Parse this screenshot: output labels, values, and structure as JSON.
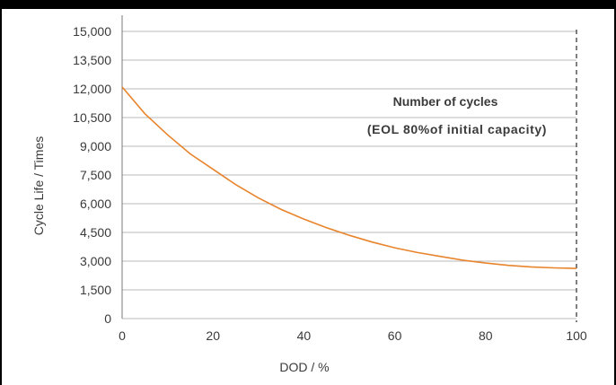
{
  "chart_data": {
    "type": "line",
    "title": "",
    "xlabel": "DOD / %",
    "ylabel": "Cycle Life / Times",
    "xlim": [
      0,
      100
    ],
    "ylim": [
      0,
      15000
    ],
    "x_ticks": [
      0,
      20,
      40,
      60,
      80,
      100
    ],
    "x_tick_labels": [
      "0",
      "20",
      "40",
      "60",
      "80",
      "100"
    ],
    "y_ticks": [
      0,
      1500,
      3000,
      4500,
      6000,
      7500,
      9000,
      10500,
      12000,
      13500,
      15000
    ],
    "y_tick_labels": [
      "0",
      "1,500",
      "3,000",
      "4,500",
      "6,000",
      "7,500",
      "9,000",
      "10,500",
      "12,000",
      "13,500",
      "15,000"
    ],
    "grid": "horizontal",
    "series": [
      {
        "color": "#e8842c",
        "x": [
          0,
          5,
          10,
          15,
          20,
          25,
          30,
          35,
          40,
          45,
          50,
          55,
          60,
          65,
          70,
          75,
          80,
          85,
          90,
          95,
          100
        ],
        "y": [
          12100,
          10700,
          9600,
          8600,
          7800,
          7000,
          6300,
          5700,
          5200,
          4750,
          4350,
          4000,
          3700,
          3450,
          3250,
          3050,
          2900,
          2780,
          2700,
          2650,
          2620
        ]
      }
    ],
    "reference_line": {
      "x": 100,
      "style": "dashed",
      "color": "#555555"
    },
    "annotations": [
      "Number of cycles",
      "(EOL 80%of initial capacity)"
    ]
  }
}
